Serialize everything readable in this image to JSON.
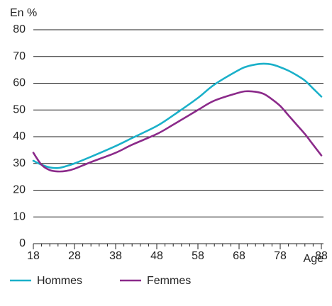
{
  "chart_data": {
    "type": "line",
    "y_unit_label": "En %",
    "xlabel": "Age",
    "x": [
      18,
      20,
      22,
      24,
      26,
      28,
      32,
      38,
      42,
      48,
      52,
      58,
      62,
      68,
      70,
      72,
      74,
      76,
      78,
      80,
      82,
      84,
      86,
      88
    ],
    "series": [
      {
        "name": "Hommes",
        "color": "#1ab0c9",
        "values": [
          31,
          29.5,
          28.5,
          28.3,
          29,
          30,
          32.5,
          36.5,
          39.5,
          44,
          48,
          54.5,
          59.5,
          65,
          66.3,
          67,
          67.3,
          67,
          66,
          64.7,
          63,
          61,
          58,
          55
        ]
      },
      {
        "name": "Femmes",
        "color": "#8b2a8a",
        "values": [
          34,
          29.5,
          27.5,
          27,
          27.2,
          28,
          30.5,
          34,
          37,
          41,
          44.5,
          50,
          53.5,
          56.5,
          57,
          56.8,
          56,
          54,
          51.5,
          48,
          44.5,
          41,
          37,
          33
        ]
      }
    ],
    "xlim": [
      18,
      88
    ],
    "xticks": [
      18,
      28,
      38,
      48,
      58,
      68,
      78,
      88
    ],
    "xminorticks": [
      20,
      22,
      24,
      26,
      30,
      32,
      34,
      36,
      40,
      42,
      44,
      46,
      50,
      52,
      54,
      56,
      60,
      62,
      64,
      66,
      70,
      72,
      74,
      76,
      80,
      82,
      84,
      86
    ],
    "ylim": [
      0,
      80
    ],
    "yticks": [
      0,
      10,
      20,
      30,
      40,
      50,
      60,
      70,
      80
    ],
    "grid": true,
    "legend": "bottom"
  }
}
